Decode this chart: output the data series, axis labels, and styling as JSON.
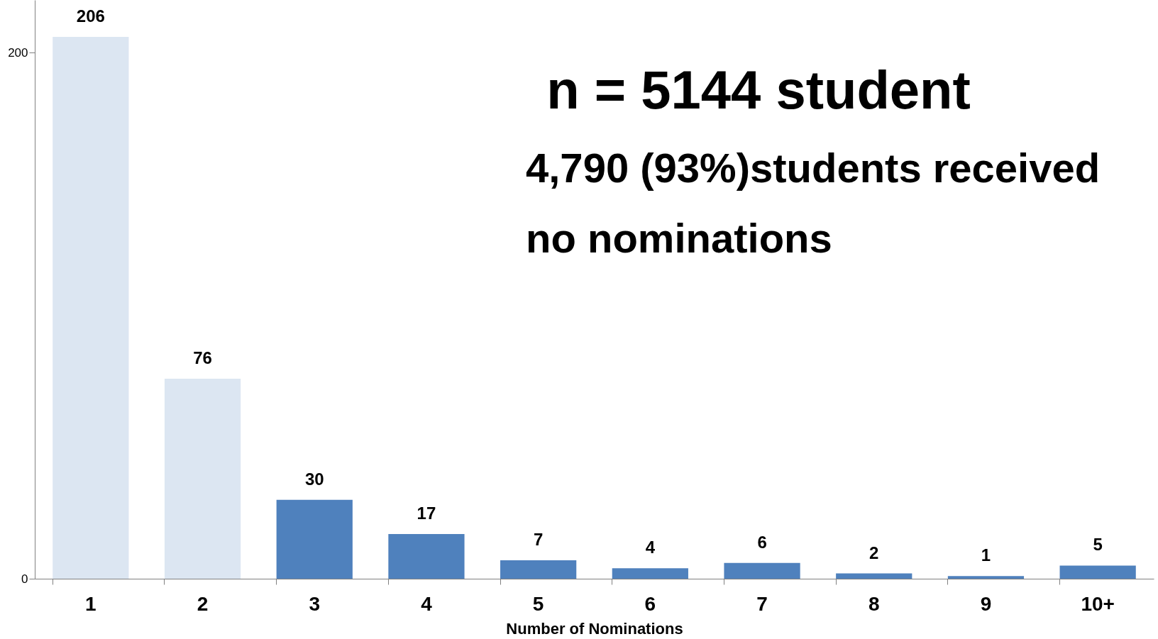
{
  "chart_data": {
    "type": "bar",
    "categories": [
      "1",
      "2",
      "3",
      "4",
      "5",
      "6",
      "7",
      "8",
      "9",
      "10+"
    ],
    "values": [
      206,
      76,
      30,
      17,
      7,
      4,
      6,
      2,
      1,
      5
    ],
    "colors": [
      "#dce6f2",
      "#dce6f2",
      "#4f81bd",
      "#4f81bd",
      "#4f81bd",
      "#4f81bd",
      "#4f81bd",
      "#4f81bd",
      "#4f81bd",
      "#4f81bd"
    ],
    "xlabel": "Number of Nominations",
    "ylim": [
      0,
      220
    ],
    "yticks": [
      0,
      200
    ],
    "data_labels": true,
    "grid": false,
    "annotations": [
      "n = 5144 student",
      "4,790 (93%)students received\nno nominations"
    ]
  }
}
